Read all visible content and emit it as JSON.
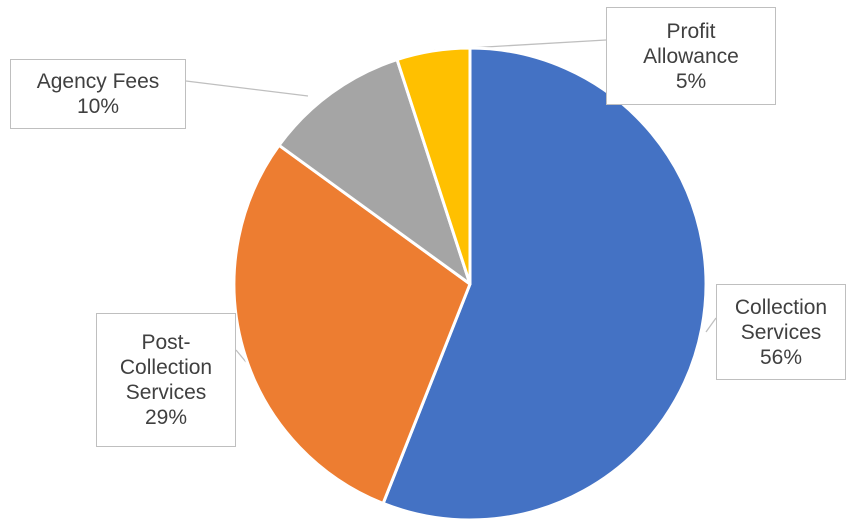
{
  "chart_data": {
    "type": "pie",
    "title": "",
    "slices": [
      {
        "label_lines": [
          "Collection",
          "Services"
        ],
        "value": 56,
        "value_label": "56%",
        "color": "#4472C4"
      },
      {
        "label_lines": [
          "Post-",
          "Collection",
          "Services"
        ],
        "value": 29,
        "value_label": "29%",
        "color": "#ED7D31"
      },
      {
        "label_lines": [
          "Agency Fees"
        ],
        "value": 10,
        "value_label": "10%",
        "color": "#A5A5A5"
      },
      {
        "label_lines": [
          "Profit",
          "Allowance"
        ],
        "value": 5,
        "value_label": "5%",
        "color": "#FFC000"
      }
    ],
    "start_angle_deg": 0,
    "direction": "clockwise",
    "legend": "none",
    "data_labels": "callouts outside",
    "slice_border_color": "#ffffff",
    "callout_border_color": "#bfbfbf",
    "label_text_color": "#404040"
  }
}
